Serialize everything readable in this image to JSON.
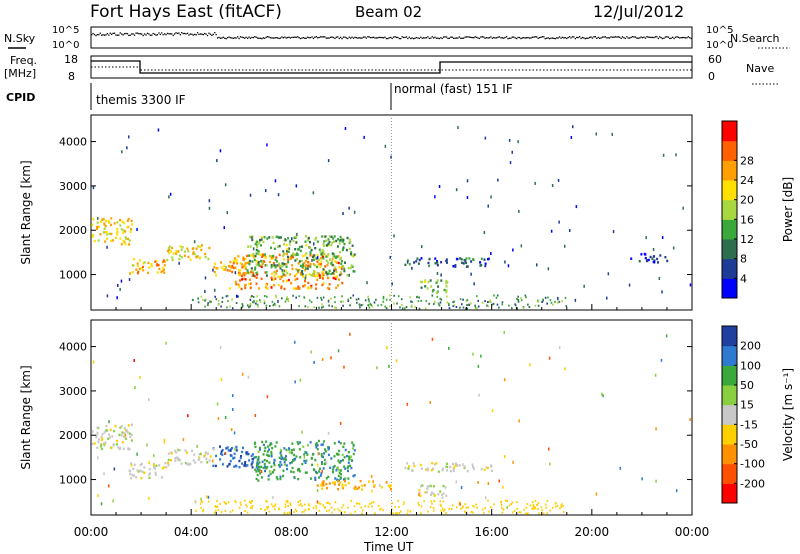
{
  "header": {
    "station": "Fort Hays East (fitACF)",
    "beam": "Beam 02",
    "date": "12/Jul/2012"
  },
  "noise_panel": {
    "left_label": "N.Sky",
    "right_label": "N.Search",
    "left_ticks": [
      "10^5",
      "10^0"
    ],
    "right_ticks": [
      "10^5",
      "10^0"
    ]
  },
  "freq_panel": {
    "left_label_line1": "Freq.",
    "left_label_line2": "[MHz]",
    "right_label": "Nave",
    "left_ticks": [
      "18",
      "8"
    ],
    "right_ticks": [
      "60",
      "0"
    ]
  },
  "cpid_panel": {
    "label": "CPID",
    "modes": [
      {
        "text": "themis 3300 IF",
        "start_hour": 0
      },
      {
        "text": "normal (fast) 151 IF",
        "start_hour": 12
      }
    ]
  },
  "time_axis": {
    "label": "Time UT",
    "ticks": [
      "00:00",
      "04:00",
      "08:00",
      "12:00",
      "16:00",
      "20:00",
      "00:00"
    ]
  },
  "chart_data": [
    {
      "type": "heatmap",
      "title": "",
      "xlabel": "Time UT",
      "ylabel": "Slant Range [km]",
      "xlim": [
        0,
        24
      ],
      "ylim": [
        200,
        4600
      ],
      "yticks": [
        "1000",
        "2000",
        "3000",
        "4000"
      ],
      "colorbar": {
        "label": "Power [dB]",
        "ticks": [
          "4",
          "8",
          "12",
          "16",
          "20",
          "24",
          "28"
        ],
        "colors": [
          "#0000ff",
          "#1e3c96",
          "#2e6e4e",
          "#3aa83a",
          "#a8d840",
          "#ffe000",
          "#ffa000",
          "#ff6000",
          "#ff0000"
        ]
      },
      "regions": [
        {
          "start": 0.0,
          "end": 1.6,
          "r_lo": 1700,
          "r_hi": 2300,
          "value": 20
        },
        {
          "start": 1.5,
          "end": 3.0,
          "r_lo": 1050,
          "r_hi": 1400,
          "value": 22
        },
        {
          "start": 3.0,
          "end": 4.8,
          "r_lo": 1350,
          "r_hi": 1700,
          "value": 20
        },
        {
          "start": 4.8,
          "end": 6.2,
          "r_lo": 1000,
          "r_hi": 1300,
          "value": 22
        },
        {
          "start": 5.5,
          "end": 10.0,
          "r_lo": 700,
          "r_hi": 1500,
          "value": 24
        },
        {
          "start": 6.2,
          "end": 10.5,
          "r_lo": 1000,
          "r_hi": 1900,
          "value": 13
        },
        {
          "start": 12.5,
          "end": 16.0,
          "r_lo": 1200,
          "r_hi": 1400,
          "value": 7
        },
        {
          "start": 13.0,
          "end": 14.2,
          "r_lo": 600,
          "r_hi": 900,
          "value": 14
        },
        {
          "start": 21.5,
          "end": 23.0,
          "r_lo": 1300,
          "r_hi": 1500,
          "value": 5
        }
      ]
    },
    {
      "type": "heatmap",
      "title": "",
      "xlabel": "Time UT",
      "ylabel": "Slant Range [km]",
      "xlim": [
        0,
        24
      ],
      "ylim": [
        200,
        4600
      ],
      "yticks": [
        "1000",
        "2000",
        "3000",
        "4000"
      ],
      "colorbar": {
        "label": "Velocity [m s⁻¹]",
        "ticks": [
          "200",
          "100",
          "50",
          "15",
          "-15",
          "-50",
          "-100",
          "-200"
        ],
        "colors": [
          "#2040a0",
          "#2e7ad0",
          "#3aa83a",
          "#88d040",
          "#c8c8c8",
          "#ffd000",
          "#ff9000",
          "#ff5000",
          "#ff0000"
        ]
      },
      "regions": [
        {
          "start": 0.0,
          "end": 1.6,
          "r_lo": 1700,
          "r_hi": 2300,
          "value": 0
        },
        {
          "start": 1.5,
          "end": 3.0,
          "r_lo": 1050,
          "r_hi": 1400,
          "value": 0
        },
        {
          "start": 3.0,
          "end": 4.8,
          "r_lo": 1350,
          "r_hi": 1700,
          "value": 0
        },
        {
          "start": 4.8,
          "end": 6.5,
          "r_lo": 1300,
          "r_hi": 1800,
          "value": 180
        },
        {
          "start": 6.5,
          "end": 10.5,
          "r_lo": 1000,
          "r_hi": 1900,
          "value": 120
        },
        {
          "start": 9.0,
          "end": 12.0,
          "r_lo": 800,
          "r_hi": 1000,
          "value": -80
        },
        {
          "start": 12.5,
          "end": 16.0,
          "r_lo": 1200,
          "r_hi": 1400,
          "value": 0
        },
        {
          "start": 13.0,
          "end": 14.2,
          "r_lo": 600,
          "r_hi": 900,
          "value": 0
        }
      ]
    }
  ]
}
